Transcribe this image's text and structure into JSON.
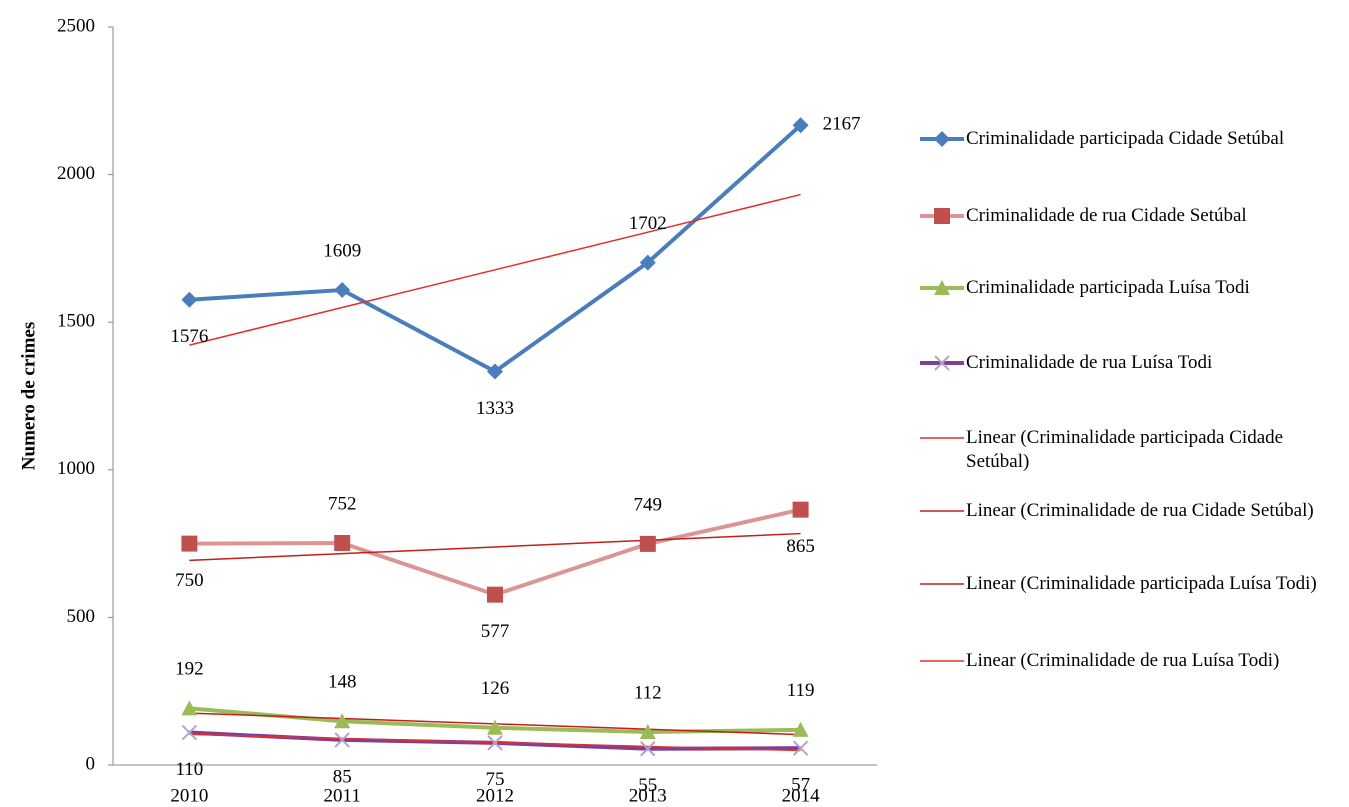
{
  "chart_data": {
    "type": "line",
    "ylabel": "Numero de crimes",
    "categories": [
      "2010",
      "2011",
      "2012",
      "2013",
      "2014"
    ],
    "ylim": [
      0,
      2500
    ],
    "yticks": [
      0,
      500,
      1000,
      1500,
      2000,
      2500
    ],
    "series": [
      {
        "name": "Criminalidade participada Cidade Setúbal",
        "color": "#4a7ebb",
        "marker": "diamond",
        "values": [
          1576,
          1609,
          1333,
          1702,
          2167
        ]
      },
      {
        "name": "Criminalidade de rua Cidade Setúbal",
        "color": "#d99694",
        "marker": "square",
        "marker_color": "#c0504d",
        "values": [
          750,
          752,
          577,
          749,
          865
        ]
      },
      {
        "name": "Criminalidade participada Luísa Todi",
        "color": "#9bbb59",
        "marker": "triangle",
        "values": [
          192,
          148,
          126,
          112,
          119
        ]
      },
      {
        "name": "Criminalidade de rua Luísa Todi",
        "color": "#7e3f98",
        "marker": "x",
        "marker_color": "#b3a2c7",
        "values": [
          110,
          85,
          75,
          55,
          57
        ]
      },
      {
        "name": "Linear (Criminalidade participada Cidade Setúbal)",
        "color": "#e0302a",
        "trend": true,
        "values": [
          1422.4,
          1549.9,
          1677.4,
          1804.9,
          1932.4
        ]
      },
      {
        "name": "Linear (Criminalidade de rua Cidade Setúbal)",
        "color": "#c0201a",
        "trend": true,
        "values": [
          693.2,
          715.9,
          738.6,
          761.3,
          784.0
        ]
      },
      {
        "name": "Linear (Criminalidade participada Luísa Todi)",
        "color": "#c0201a",
        "trend": true,
        "values": [
          175.8,
          157.6,
          139.4,
          121.2,
          103.0
        ]
      },
      {
        "name": "Linear (Criminalidade de rua Luísa Todi)",
        "color": "#e0302a",
        "trend": true,
        "values": [
          103.6,
          90.0,
          76.4,
          62.8,
          49.2
        ]
      }
    ]
  }
}
